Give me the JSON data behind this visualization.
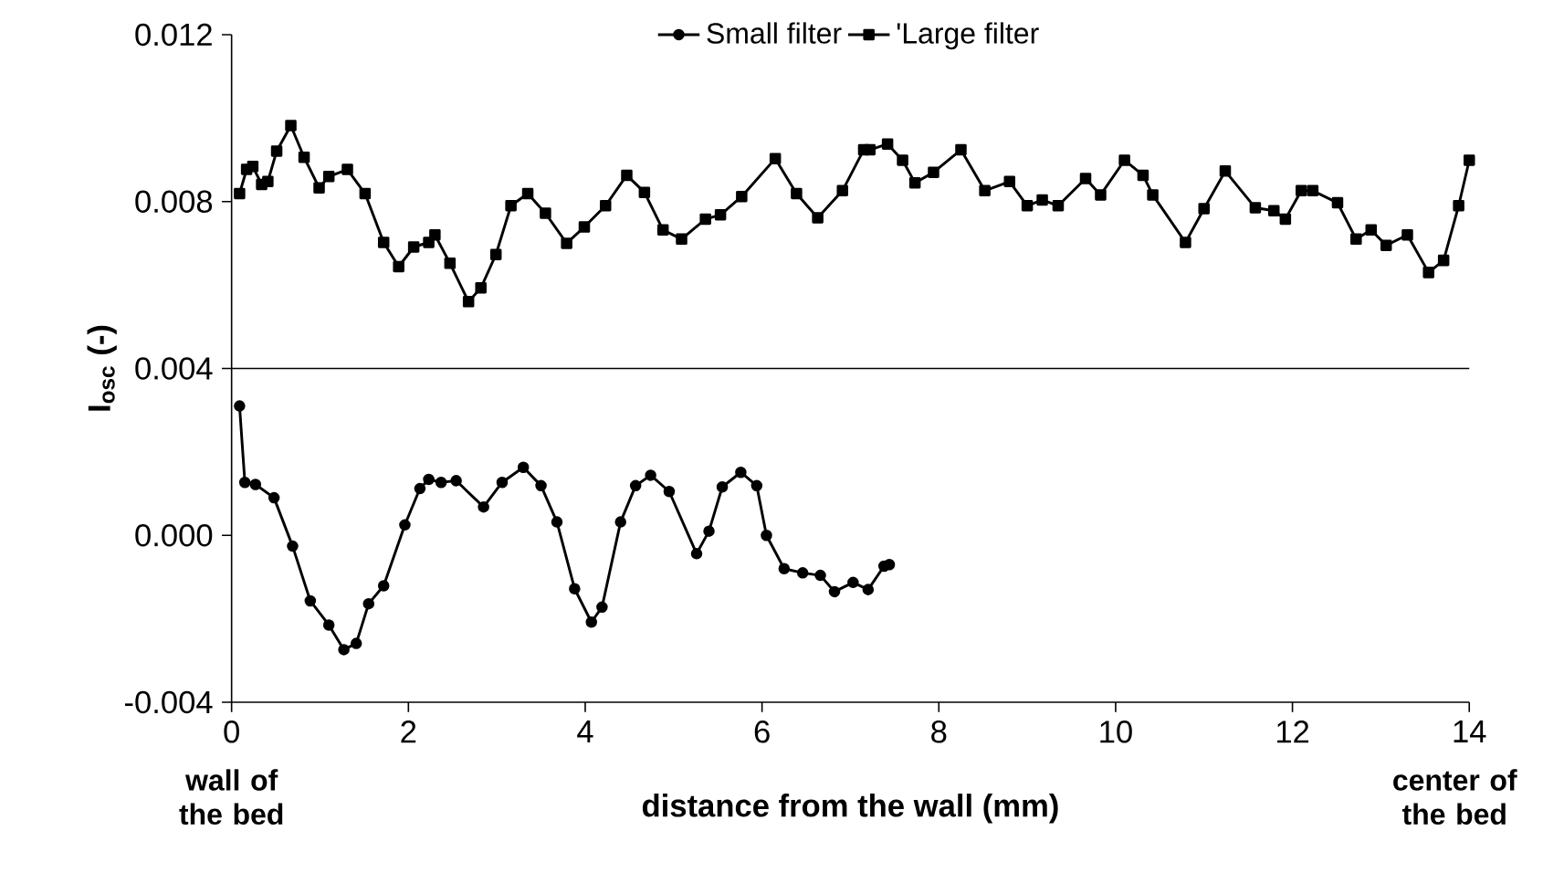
{
  "chart_data": {
    "type": "line",
    "xlabel": "distance from the wall (mm)",
    "ylabel": "I$_{osc}$ (-)",
    "annotations": [
      "wall of the bed",
      "center of the bed"
    ],
    "xlim": [
      0,
      14
    ],
    "xticks": [
      0,
      2,
      4,
      6,
      8,
      10,
      12,
      14
    ],
    "ylim": [
      -0.004,
      0.012
    ],
    "yticks": [
      -0.004,
      {
        "value": 0,
        "label": "0.000"
      },
      0.004,
      0.008,
      0.012
    ],
    "ref_lines": [
      {
        "axis": "y",
        "value": 0.004,
        "color": "#000000"
      }
    ],
    "legend": "top",
    "grid": false,
    "line_style": "solid",
    "series": [
      {
        "name": "Small filter",
        "color": "#000000",
        "marker": "circle",
        "x": [
          0.09,
          0.15,
          0.27,
          0.48,
          0.69,
          0.89,
          1.1,
          1.27,
          1.41,
          1.55,
          1.72,
          1.96,
          2.13,
          2.23,
          2.37,
          2.54,
          2.85,
          3.06,
          3.3,
          3.5,
          3.68,
          3.88,
          4.07,
          4.19,
          4.4,
          4.57,
          4.74,
          4.95,
          5.26,
          5.4,
          5.55,
          5.76,
          5.94,
          6.05,
          6.25,
          6.46,
          6.66,
          6.82,
          7.03,
          7.2,
          7.38,
          7.44
        ],
        "values": [
          0.0031,
          0.00127,
          0.00122,
          0.0009,
          -0.00026,
          -0.00157,
          -0.00215,
          -0.00274,
          -0.00259,
          -0.00164,
          -0.00121,
          0.00025,
          0.00112,
          0.00134,
          0.00127,
          0.00131,
          0.00068,
          0.00127,
          0.00163,
          0.00119,
          0.00032,
          -0.00128,
          -0.00208,
          -0.00172,
          0.00032,
          0.00119,
          0.00144,
          0.00105,
          -0.00044,
          0.0001,
          0.00116,
          0.00151,
          0.00119,
          0.0,
          -0.0008,
          -0.0009,
          -0.00096,
          -0.00135,
          -0.00113,
          -0.0013,
          -0.00074,
          -0.0007
        ]
      },
      {
        "name": "'Large filter",
        "color": "#000000",
        "marker": "square",
        "x": [
          0.09,
          0.17,
          0.24,
          0.34,
          0.41,
          0.51,
          0.67,
          0.82,
          0.99,
          1.1,
          1.31,
          1.51,
          1.72,
          1.89,
          2.06,
          2.23,
          2.3,
          2.47,
          2.68,
          2.82,
          2.99,
          3.16,
          3.35,
          3.55,
          3.79,
          3.99,
          4.23,
          4.47,
          4.67,
          4.88,
          5.09,
          5.36,
          5.53,
          5.77,
          6.15,
          6.39,
          6.63,
          6.91,
          7.15,
          7.22,
          7.42,
          7.59,
          7.73,
          7.94,
          8.25,
          8.52,
          8.8,
          9.0,
          9.17,
          9.35,
          9.66,
          9.83,
          10.1,
          10.31,
          10.42,
          10.79,
          11.0,
          11.24,
          11.58,
          11.79,
          11.92,
          12.1,
          12.23,
          12.51,
          12.72,
          12.89,
          13.06,
          13.3,
          13.54,
          13.71,
          13.88,
          14.0
        ],
        "values": [
          0.00819,
          0.00877,
          0.00884,
          0.00841,
          0.00848,
          0.00921,
          0.00982,
          0.00906,
          0.00833,
          0.0086,
          0.00877,
          0.00819,
          0.00702,
          0.00644,
          0.00691,
          0.00702,
          0.0072,
          0.00652,
          0.0056,
          0.00593,
          0.00673,
          0.0079,
          0.00819,
          0.00772,
          0.007,
          0.00739,
          0.0079,
          0.00863,
          0.00822,
          0.00732,
          0.0071,
          0.00758,
          0.00768,
          0.00812,
          0.00903,
          0.00819,
          0.00761,
          0.00826,
          0.00924,
          0.00924,
          0.00938,
          0.00899,
          0.00845,
          0.0087,
          0.00924,
          0.00826,
          0.00848,
          0.0079,
          0.00804,
          0.0079,
          0.00855,
          0.00816,
          0.00899,
          0.00863,
          0.00816,
          0.00702,
          0.00783,
          0.00873,
          0.00785,
          0.00778,
          0.00758,
          0.00826,
          0.00826,
          0.00797,
          0.0071,
          0.00732,
          0.00695,
          0.0072,
          0.0063,
          0.00659,
          0.0079,
          0.00899
        ]
      }
    ]
  }
}
